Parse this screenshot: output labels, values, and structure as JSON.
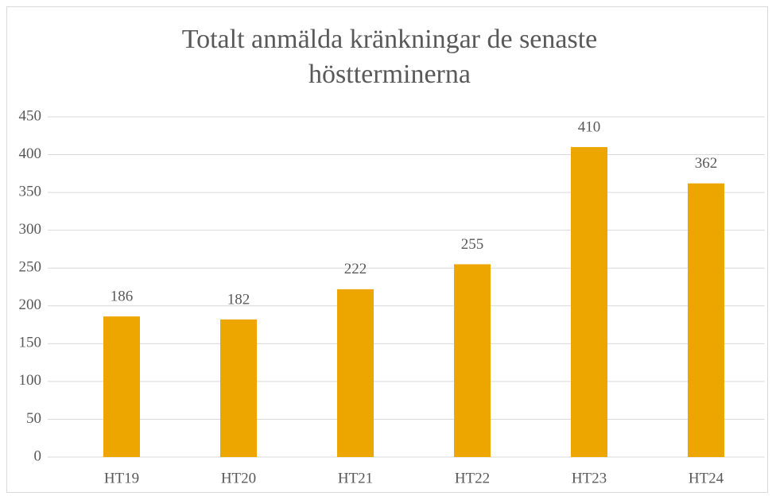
{
  "chart_data": {
    "type": "bar",
    "title": "Totalt anmälda kränkningar de senaste höstterminerna",
    "categories": [
      "HT19",
      "HT20",
      "HT21",
      "HT22",
      "HT23",
      "HT24"
    ],
    "values": [
      186,
      182,
      222,
      255,
      410,
      362
    ],
    "color": "#eda600",
    "ylim": [
      0,
      450
    ],
    "yticks": [
      0,
      50,
      100,
      150,
      200,
      250,
      300,
      350,
      400,
      450
    ],
    "grid": true
  }
}
